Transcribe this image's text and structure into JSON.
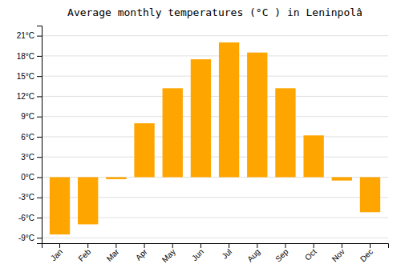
{
  "chart_data": {
    "type": "bar",
    "title": "Average monthly temperatures (°C ) in Leninpolâ",
    "categories": [
      "Jan",
      "Feb",
      "Mar",
      "Apr",
      "May",
      "Jun",
      "Jul",
      "Aug",
      "Sep",
      "Oct",
      "Nov",
      "Dec"
    ],
    "values": [
      -8.5,
      -7.0,
      -0.3,
      8.0,
      13.2,
      17.5,
      20.0,
      18.5,
      13.2,
      6.2,
      -0.5,
      -5.2
    ],
    "color": "#FFA500",
    "ylim": [
      -9.8,
      22.5
    ],
    "yticks": [
      {
        "value": -9,
        "label": "-9°C"
      },
      {
        "value": -6,
        "label": "-6°C"
      },
      {
        "value": -3,
        "label": "-3°C"
      },
      {
        "value": 0,
        "label": "0°C"
      },
      {
        "value": 3,
        "label": "3°C"
      },
      {
        "value": 6,
        "label": "6°C"
      },
      {
        "value": 9,
        "label": "9°C"
      },
      {
        "value": 12,
        "label": "12°C"
      },
      {
        "value": 15,
        "label": "15°C"
      },
      {
        "value": 18,
        "label": "18°C"
      },
      {
        "value": 21,
        "label": "21°C"
      }
    ],
    "grid": true
  }
}
